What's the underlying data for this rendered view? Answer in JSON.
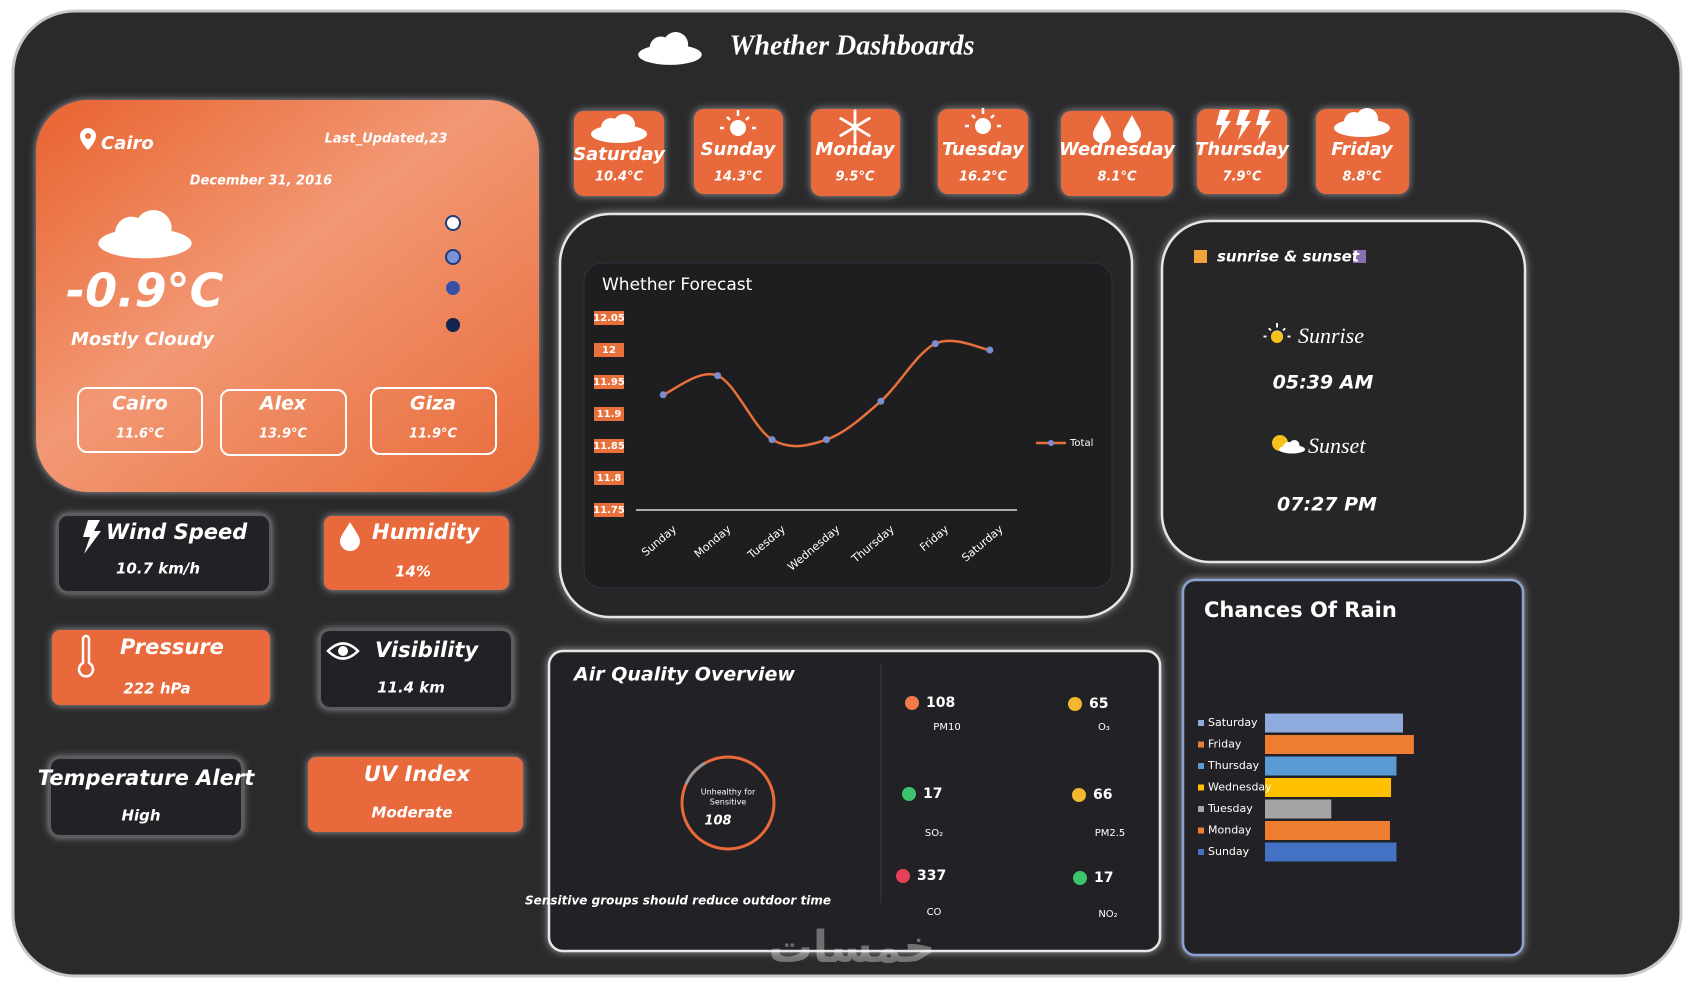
{
  "header": {
    "title": "Whether Dashboards"
  },
  "current": {
    "city": "Cairo",
    "last_updated": "Last_Updated,23",
    "date": "December 31, 2016",
    "temperature": "-0.9°C",
    "condition": "Mostly Cloudy",
    "cities": [
      {
        "name": "Cairo",
        "temp": "11.6°C"
      },
      {
        "name": "Alex",
        "temp": "13.9°C"
      },
      {
        "name": "Giza",
        "temp": "11.9°C"
      }
    ]
  },
  "forecast_days": [
    {
      "day": "Saturday",
      "temp": "10.4°C"
    },
    {
      "day": "Sunday",
      "temp": "14.3°C"
    },
    {
      "day": "Monday",
      "temp": "9.5°C"
    },
    {
      "day": "Tuesday",
      "temp": "16.2°C"
    },
    {
      "day": "Wednesday",
      "temp": "8.1°C"
    },
    {
      "day": "Thursday",
      "temp": "7.9°C"
    },
    {
      "day": "Friday",
      "temp": "8.8°C"
    }
  ],
  "metrics": [
    {
      "label": "Wind Speed",
      "value": "10.7 km/h"
    },
    {
      "label": "Humidity",
      "value": "14%"
    },
    {
      "label": "Pressure",
      "value": "222 hPa"
    },
    {
      "label": "Visibility",
      "value": "11.4 km"
    },
    {
      "label": "Temperature Alert",
      "value": "High"
    },
    {
      "label": "UV Index",
      "value": "Moderate"
    }
  ],
  "sun": {
    "title": "sunrise  & sunset",
    "sunrise_label": "Sunrise",
    "sunrise": "05:39 AM",
    "sunset_label": "Sunset",
    "sunset": "07:27 PM"
  },
  "air_quality": {
    "title": "Air Quality Overview",
    "gauge_label": [
      "Unhealthy for",
      "Sensitive"
    ],
    "gauge_value": 108,
    "note": "Sensitive groups should reduce outdoor time",
    "pollutants": [
      {
        "value": 108,
        "label": "PM10",
        "color": "#f07a4a"
      },
      {
        "value": 65,
        "label": "O₃",
        "color": "#f2b830"
      },
      {
        "value": 17,
        "label": "SO₂",
        "color": "#3ec46d"
      },
      {
        "value": 66,
        "label": "PM2.5",
        "color": "#f2b830"
      },
      {
        "value": 337,
        "label": "CO",
        "color": "#e8405a"
      },
      {
        "value": 17,
        "label": "NO₂",
        "color": "#3ec46d"
      }
    ]
  },
  "chart_data": [
    {
      "type": "line",
      "title": "Whether Forecast",
      "categories": [
        "Sunday",
        "Monday",
        "Tuesday",
        "Wednesday",
        "Thursday",
        "Friday",
        "Saturday"
      ],
      "series": [
        {
          "name": "Total",
          "color": "#e8703a",
          "values": [
            11.93,
            11.96,
            11.86,
            11.86,
            11.92,
            12.01,
            12.0
          ]
        }
      ],
      "ylim": [
        11.75,
        12.05
      ],
      "yticks": [
        12.05,
        12,
        11.95,
        11.9,
        11.85,
        11.8,
        11.75
      ],
      "grid": false
    },
    {
      "type": "hbar",
      "title": "Chances Of Rain",
      "categories": [
        "Saturday",
        "Friday",
        "Thursday",
        "Wednesday",
        "Tuesday",
        "Monday",
        "Sunday"
      ],
      "values": [
        127,
        137,
        121,
        116,
        61,
        115,
        121
      ],
      "colors": [
        "#8faadc",
        "#ed7d31",
        "#5b9bd5",
        "#ffc000",
        "#a5a5a5",
        "#ed7d31",
        "#4472c4"
      ],
      "xlim": [
        0,
        150
      ]
    }
  ],
  "watermark": "خمسات"
}
